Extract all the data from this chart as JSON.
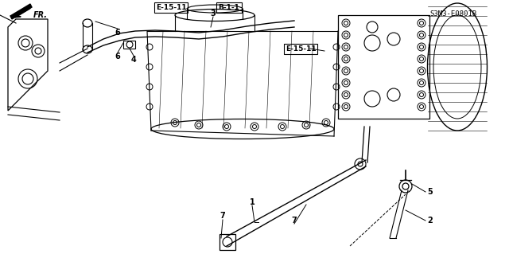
{
  "title": "",
  "bg_color": "#ffffff",
  "diagram_id": "S3M3-E0801B",
  "labels": {
    "part1": "1",
    "part2": "2",
    "part3": "3",
    "part4": "4",
    "part5": "5",
    "part6a": "6",
    "part6b": "6",
    "part7a": "7",
    "part7b": "7"
  },
  "ref_labels": {
    "e1511a": "E-15-11",
    "b11": "B-1-1",
    "e1511b": "E-15-11",
    "fr": "FR."
  },
  "line_color": "#000000",
  "text_color": "#000000",
  "font_size": 7
}
